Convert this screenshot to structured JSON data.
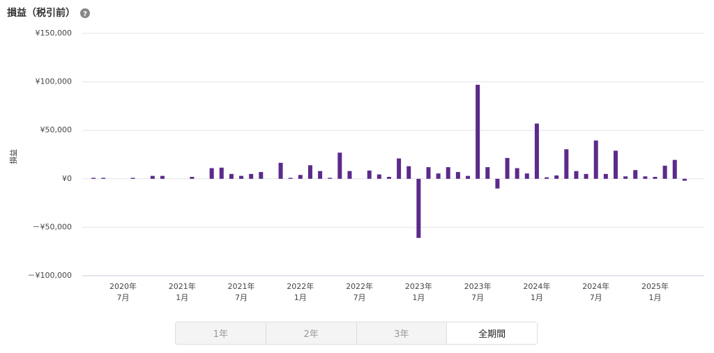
{
  "chart_data": {
    "type": "bar",
    "title": "損益（税引前）",
    "y_label": "損益",
    "categories": [
      null,
      null,
      null,
      [
        "2020年",
        "7月"
      ],
      null,
      null,
      null,
      null,
      null,
      [
        "2021年",
        "1月"
      ],
      null,
      null,
      null,
      null,
      null,
      [
        "2021年",
        "7月"
      ],
      null,
      null,
      null,
      null,
      null,
      [
        "2022年",
        "1月"
      ],
      null,
      null,
      null,
      null,
      null,
      [
        "2022年",
        "7月"
      ],
      null,
      null,
      null,
      null,
      null,
      [
        "2023年",
        "1月"
      ],
      null,
      null,
      null,
      null,
      null,
      [
        "2023年",
        "7月"
      ],
      null,
      null,
      null,
      null,
      null,
      [
        "2024年",
        "1月"
      ],
      null,
      null,
      null,
      null,
      null,
      [
        "2024年",
        "7月"
      ],
      null,
      null,
      null,
      null,
      null,
      [
        "2025年",
        "1月"
      ],
      null,
      null,
      null
    ],
    "values": [
      1000,
      1000,
      0,
      0,
      1000,
      0,
      3000,
      3000,
      0,
      0,
      2000,
      0,
      11000,
      11500,
      5000,
      3000,
      5000,
      7000,
      0,
      16500,
      1000,
      4000,
      14000,
      8000,
      1000,
      27000,
      8000,
      0,
      8500,
      4500,
      2000,
      21000,
      13000,
      -61000,
      12000,
      5500,
      12000,
      7000,
      3000,
      97000,
      12000,
      -10000,
      21500,
      11000,
      5500,
      57000,
      1500,
      3500,
      30500,
      8000,
      5000,
      39500,
      5000,
      29000,
      2500,
      9000,
      2500,
      2000,
      13500,
      19500,
      -2000
    ],
    "color": "#5b2a8a",
    "ylim": [
      -100000,
      150000
    ],
    "yticks": [
      {
        "value": -100000,
        "label": "－¥100,000"
      },
      {
        "value": -50000,
        "label": "－¥50,000"
      },
      {
        "value": 0,
        "label": "¥0"
      },
      {
        "value": 50000,
        "label": "¥50,000"
      },
      {
        "value": 100000,
        "label": "¥100,000"
      },
      {
        "value": 150000,
        "label": "¥150,000"
      }
    ],
    "grid": true
  },
  "controls": {
    "ranges": [
      "1年",
      "2年",
      "3年",
      "全期間"
    ]
  }
}
